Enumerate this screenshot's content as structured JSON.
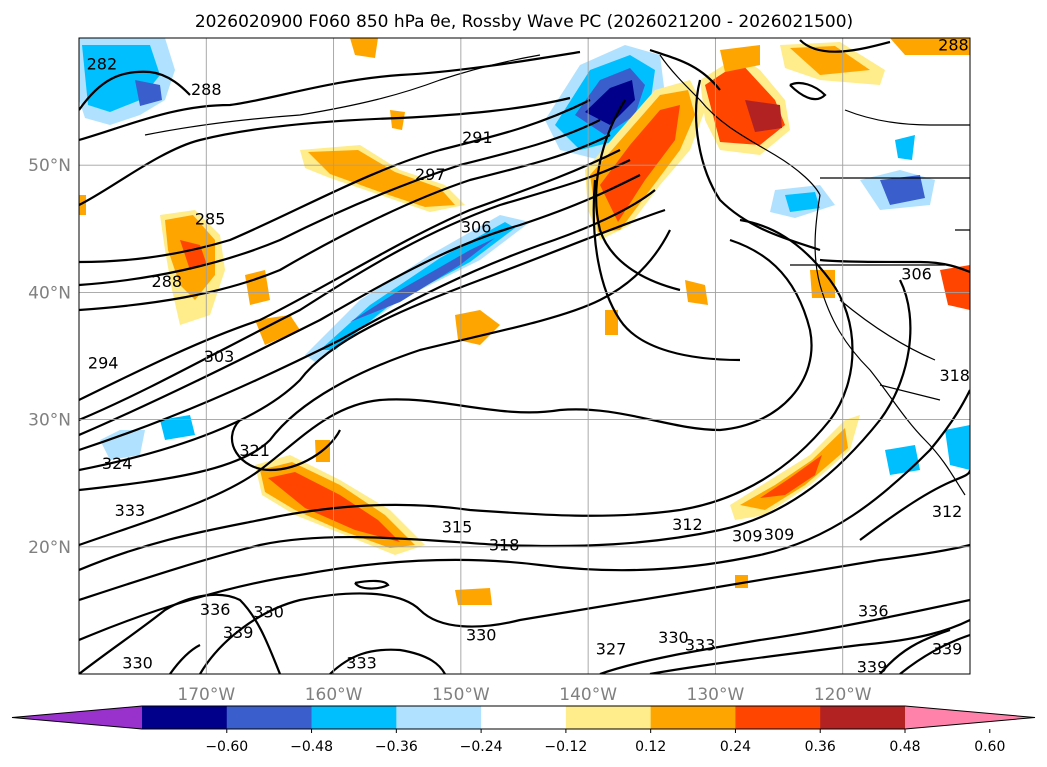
{
  "chart_data": {
    "type": "contour-map",
    "title": "2026020900 F060 850 hPa θe, Rossby Wave PC (2026021200 - 2026021500)",
    "map": {
      "lon_range": [
        -180,
        -110
      ],
      "lat_range": [
        10,
        60
      ],
      "lon_ticks": [
        {
          "lon": -170,
          "label": "170°W"
        },
        {
          "lon": -160,
          "label": "160°W"
        },
        {
          "lon": -150,
          "label": "150°W"
        },
        {
          "lon": -140,
          "label": "140°W"
        },
        {
          "lon": -130,
          "label": "130°W"
        },
        {
          "lon": -120,
          "label": "120°W"
        }
      ],
      "lat_ticks": [
        {
          "lat": 50,
          "label": "50°N"
        },
        {
          "lat": 40,
          "label": "40°N"
        },
        {
          "lat": 30,
          "label": "30°N"
        },
        {
          "lat": 20,
          "label": "20°N"
        }
      ],
      "grid": true
    },
    "contour_labels": [
      {
        "text": "282",
        "lon": -178.2,
        "lat": 58.0
      },
      {
        "text": "288",
        "lon": -170.0,
        "lat": 56.0
      },
      {
        "text": "288",
        "lon": -111.3,
        "lat": 59.5
      },
      {
        "text": "291",
        "lon": -148.7,
        "lat": 52.2
      },
      {
        "text": "297",
        "lon": -152.4,
        "lat": 49.3
      },
      {
        "text": "285",
        "lon": -169.7,
        "lat": 45.8
      },
      {
        "text": "288",
        "lon": -173.1,
        "lat": 40.9
      },
      {
        "text": "306",
        "lon": -148.8,
        "lat": 45.2
      },
      {
        "text": "306",
        "lon": -114.2,
        "lat": 41.5
      },
      {
        "text": "294",
        "lon": -178.1,
        "lat": 34.5
      },
      {
        "text": "303",
        "lon": -169.0,
        "lat": 35.0
      },
      {
        "text": "318",
        "lon": -111.2,
        "lat": 33.5
      },
      {
        "text": "324",
        "lon": -177.0,
        "lat": 26.6
      },
      {
        "text": "321",
        "lon": -166.2,
        "lat": 27.6
      },
      {
        "text": "333",
        "lon": -176.0,
        "lat": 22.9
      },
      {
        "text": "315",
        "lon": -150.3,
        "lat": 21.6
      },
      {
        "text": "318",
        "lon": -146.6,
        "lat": 20.2
      },
      {
        "text": "312",
        "lon": -132.2,
        "lat": 21.8
      },
      {
        "text": "309",
        "lon": -127.5,
        "lat": 20.9
      },
      {
        "text": "309",
        "lon": -125.0,
        "lat": 21.0
      },
      {
        "text": "312",
        "lon": -111.8,
        "lat": 22.8
      },
      {
        "text": "336",
        "lon": -169.3,
        "lat": 15.1
      },
      {
        "text": "330",
        "lon": -165.1,
        "lat": 14.9
      },
      {
        "text": "339",
        "lon": -167.5,
        "lat": 13.3
      },
      {
        "text": "330",
        "lon": -148.4,
        "lat": 13.1
      },
      {
        "text": "333",
        "lon": -157.8,
        "lat": 10.9
      },
      {
        "text": "330",
        "lon": -175.4,
        "lat": 10.9
      },
      {
        "text": "327",
        "lon": -138.2,
        "lat": 12.0
      },
      {
        "text": "330",
        "lon": -133.3,
        "lat": 12.9
      },
      {
        "text": "333",
        "lon": -131.2,
        "lat": 12.3
      },
      {
        "text": "336",
        "lon": -117.6,
        "lat": 15.0
      },
      {
        "text": "339",
        "lon": -117.7,
        "lat": 10.6
      },
      {
        "text": "339",
        "lon": -111.8,
        "lat": 12.0
      }
    ],
    "colorbar": {
      "levels": [
        -0.6,
        -0.48,
        -0.36,
        -0.24,
        -0.12,
        0.12,
        0.24,
        0.36,
        0.48,
        0.6
      ],
      "tick_labels": [
        "−0.60",
        "−0.48",
        "−0.36",
        "−0.24",
        "−0.12",
        "0.12",
        "0.24",
        "0.36",
        "0.48",
        "0.60"
      ],
      "colors": [
        "#9932CC",
        "#00008B",
        "#3A5FCD",
        "#00BFFF",
        "#B0E2FF",
        "#FFFFFF",
        "#FFEC8B",
        "#FFA500",
        "#FF4500",
        "#B22222",
        "#FF82AB"
      ],
      "extend": "both"
    }
  }
}
